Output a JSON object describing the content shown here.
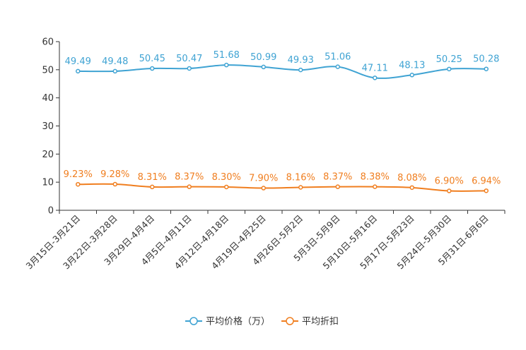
{
  "chart_data": {
    "type": "line",
    "categories": [
      "3月15日-3月21日",
      "3月22日-3月28日",
      "3月29日-4月4日",
      "4月5日-4月11日",
      "4月12日-4月18日",
      "4月19日-4月25日",
      "4月26日-5月2日",
      "5月3日-5月9日",
      "5月10日-5月16日",
      "5月17日-5月23日",
      "5月24日-5月30日",
      "5月31日-6月6日"
    ],
    "series": [
      {
        "name": "平均价格（万）",
        "color": "#3fa3d3",
        "values": [
          49.49,
          49.48,
          50.45,
          50.47,
          51.68,
          50.99,
          49.93,
          51.06,
          47.11,
          48.13,
          50.25,
          50.28
        ],
        "labels": [
          "49.49",
          "49.48",
          "50.45",
          "50.47",
          "51.68",
          "50.99",
          "49.93",
          "51.06",
          "47.11",
          "48.13",
          "50.25",
          "50.28"
        ]
      },
      {
        "name": "平均折扣",
        "color": "#f07e1f",
        "values": [
          9.23,
          9.28,
          8.31,
          8.37,
          8.3,
          7.9,
          8.16,
          8.37,
          8.38,
          8.08,
          6.9,
          6.94
        ],
        "labels": [
          "9.23%",
          "9.28%",
          "8.31%",
          "8.37%",
          "8.30%",
          "7.90%",
          "8.16%",
          "8.37%",
          "8.38%",
          "8.08%",
          "6.90%",
          "6.94%"
        ]
      }
    ],
    "yticks": [
      "0",
      "10",
      "20",
      "30",
      "40",
      "50",
      "60"
    ],
    "ylim": [
      0,
      60
    ],
    "title": "",
    "xlabel": "",
    "ylabel": "",
    "legend_position": "bottom-center"
  }
}
